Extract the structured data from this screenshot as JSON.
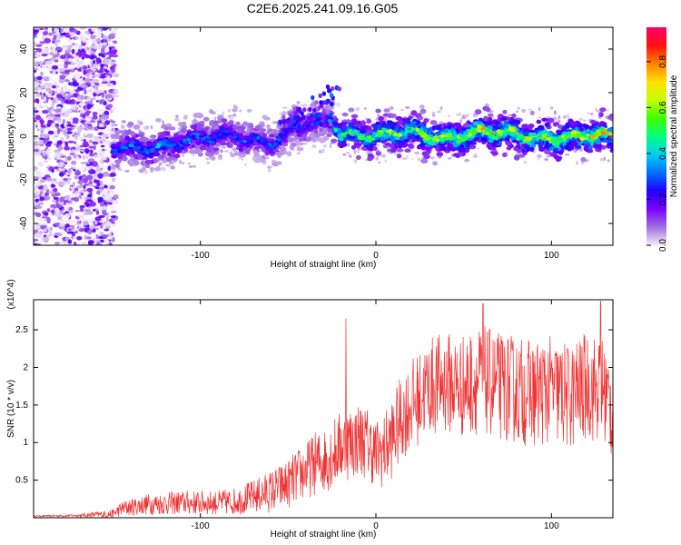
{
  "page_title": "C2E6.2025.241.09.16.G05",
  "chart_data": [
    {
      "id": "spectrogram",
      "type": "heatmap",
      "xlabel": "Height of straight line (km)",
      "ylabel": "Frequency (Hz)",
      "xlim": [
        -195,
        135
      ],
      "ylim": [
        -50,
        50
      ],
      "x_ticks": [
        -100,
        0,
        100
      ],
      "x_tick_labels": [
        "-100",
        "0",
        "100"
      ],
      "y_ticks": [
        -40,
        -20,
        0,
        20,
        40
      ],
      "y_tick_labels": [
        "-40",
        "-20",
        "0",
        "20",
        "40"
      ],
      "colorbar": {
        "label": "Normalized spectral amplitude",
        "range": [
          0,
          0.95
        ],
        "ticks": [
          0.0,
          0.2,
          0.4,
          0.6,
          0.8
        ],
        "tick_labels": [
          "0.0",
          "0.2",
          "0.4",
          "0.6",
          "0.8"
        ],
        "colors": [
          "#f4ecf8",
          "#a070e0",
          "#7a00ff",
          "#2000ff",
          "#0070ff",
          "#00d0f0",
          "#00ff80",
          "#40ff00",
          "#c8ff00",
          "#ffe000",
          "#ff8000",
          "#ff1010",
          "#ff0070"
        ]
      },
      "ridge": {
        "x": [
          -150,
          -140,
          -120,
          -100,
          -80,
          -60,
          -45,
          -30,
          -25,
          -20,
          -10,
          0,
          20,
          40,
          60,
          80,
          100,
          120,
          135
        ],
        "center_hz": [
          -6,
          -5,
          -4,
          -2,
          1,
          -3,
          3,
          6,
          8,
          2,
          1,
          0,
          1,
          0,
          2,
          0,
          0,
          0,
          -1
        ],
        "peak_amplitude": [
          0.35,
          0.4,
          0.4,
          0.38,
          0.35,
          0.35,
          0.32,
          0.3,
          0.4,
          0.55,
          0.62,
          0.68,
          0.7,
          0.72,
          0.78,
          0.74,
          0.74,
          0.8,
          0.8
        ]
      }
    },
    {
      "id": "snr",
      "type": "line",
      "xlabel": "Height of straight line (km)",
      "ylabel": "SNR (10 * v/v)",
      "y_scale_label": "(x10^4)",
      "xlim": [
        -195,
        135
      ],
      "ylim": [
        0,
        2.9
      ],
      "x_ticks": [
        -100,
        0,
        100
      ],
      "x_tick_labels": [
        "-100",
        "0",
        "100"
      ],
      "y_ticks": [
        0.5,
        1.0,
        1.5,
        2.0,
        2.5
      ],
      "y_tick_labels": [
        "0.5",
        "1",
        "1.5",
        "2",
        "2.5"
      ],
      "series": [
        {
          "name": "SNR",
          "color": "#ee3333",
          "x": [
            -195,
            -170,
            -150,
            -145,
            -130,
            -110,
            -90,
            -80,
            -70,
            -60,
            -50,
            -45,
            -40,
            -35,
            -30,
            -25,
            -20,
            -15,
            -10,
            -5,
            0,
            5,
            10,
            15,
            20,
            25,
            30,
            40,
            50,
            60,
            70,
            80,
            90,
            100,
            110,
            120,
            130,
            135
          ],
          "values": [
            0.02,
            0.03,
            0.05,
            0.12,
            0.18,
            0.2,
            0.2,
            0.22,
            0.28,
            0.35,
            0.45,
            0.55,
            0.62,
            0.72,
            0.75,
            0.85,
            0.95,
            1.0,
            1.05,
            1.0,
            0.85,
            0.9,
            1.1,
            1.35,
            1.5,
            1.6,
            1.75,
            1.8,
            1.75,
            1.85,
            1.75,
            1.7,
            1.65,
            1.7,
            1.6,
            1.75,
            1.7,
            1.4
          ],
          "noise": [
            0.01,
            0.02,
            0.06,
            0.1,
            0.14,
            0.16,
            0.16,
            0.18,
            0.22,
            0.28,
            0.33,
            0.36,
            0.38,
            0.42,
            0.44,
            0.46,
            0.48,
            0.5,
            0.5,
            0.48,
            0.46,
            0.5,
            0.55,
            0.58,
            0.6,
            0.62,
            0.65,
            0.68,
            0.7,
            0.72,
            0.72,
            0.72,
            0.72,
            0.72,
            0.72,
            0.72,
            0.72,
            0.7
          ],
          "spikes": [
            {
              "x": -17,
              "value": 2.65
            },
            {
              "x": 61,
              "value": 2.85
            },
            {
              "x": 128,
              "value": 2.88
            }
          ]
        }
      ]
    }
  ]
}
